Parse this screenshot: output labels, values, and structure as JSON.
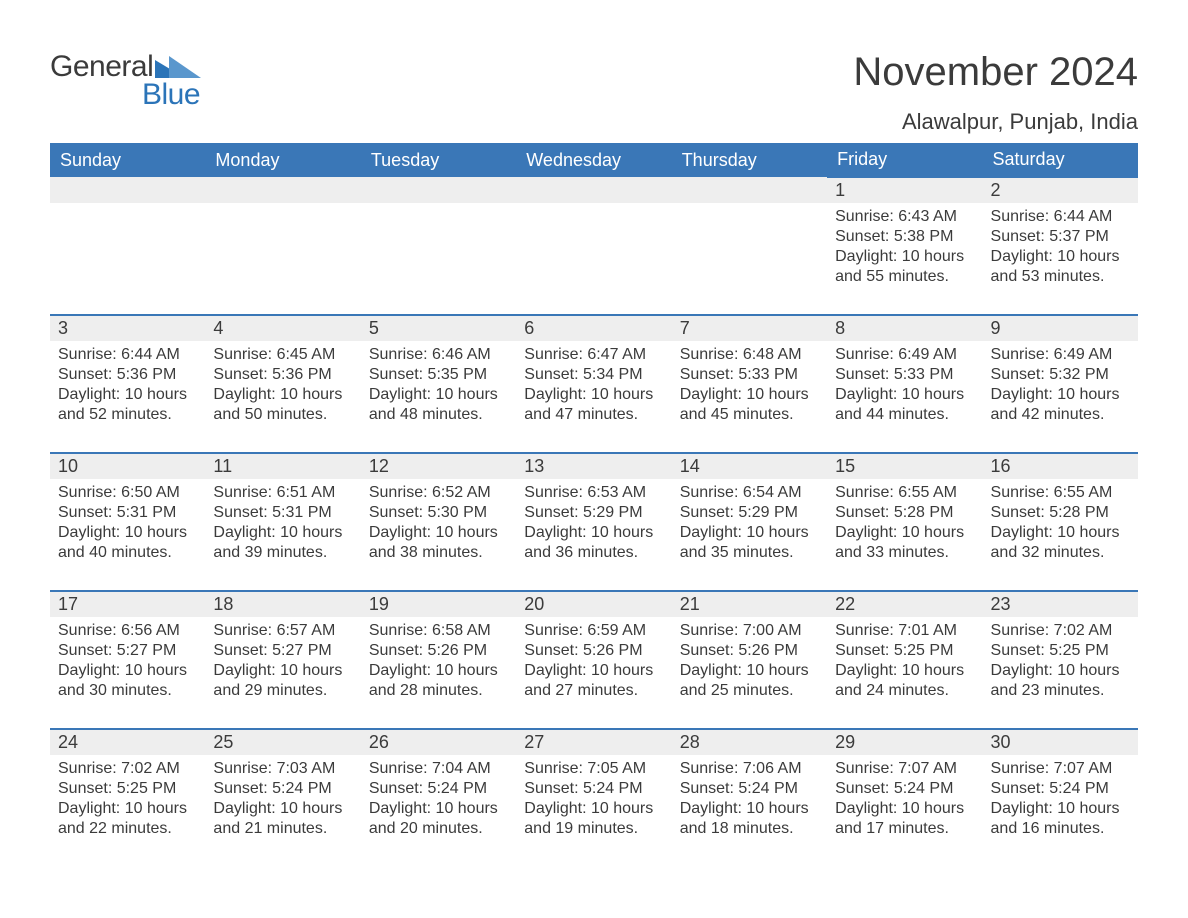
{
  "brand": {
    "word1": "General",
    "word2": "Blue",
    "accent_color": "#2b74b8"
  },
  "title": "November 2024",
  "location": "Alawalpur, Punjab, India",
  "colors": {
    "header_bg": "#3a77b7",
    "header_text": "#ffffff",
    "daynum_bg": "#eeeeee",
    "text": "#3b3b3b",
    "rule": "#3a77b7",
    "page_bg": "#ffffff"
  },
  "typography": {
    "title_fontsize": 40,
    "location_fontsize": 22,
    "header_fontsize": 18,
    "body_fontsize": 16
  },
  "columns": [
    "Sunday",
    "Monday",
    "Tuesday",
    "Wednesday",
    "Thursday",
    "Friday",
    "Saturday"
  ],
  "weeks": [
    [
      null,
      null,
      null,
      null,
      null,
      {
        "n": "1",
        "sunrise": "6:43 AM",
        "sunset": "5:38 PM",
        "daylight": "10 hours and 55 minutes."
      },
      {
        "n": "2",
        "sunrise": "6:44 AM",
        "sunset": "5:37 PM",
        "daylight": "10 hours and 53 minutes."
      }
    ],
    [
      {
        "n": "3",
        "sunrise": "6:44 AM",
        "sunset": "5:36 PM",
        "daylight": "10 hours and 52 minutes."
      },
      {
        "n": "4",
        "sunrise": "6:45 AM",
        "sunset": "5:36 PM",
        "daylight": "10 hours and 50 minutes."
      },
      {
        "n": "5",
        "sunrise": "6:46 AM",
        "sunset": "5:35 PM",
        "daylight": "10 hours and 48 minutes."
      },
      {
        "n": "6",
        "sunrise": "6:47 AM",
        "sunset": "5:34 PM",
        "daylight": "10 hours and 47 minutes."
      },
      {
        "n": "7",
        "sunrise": "6:48 AM",
        "sunset": "5:33 PM",
        "daylight": "10 hours and 45 minutes."
      },
      {
        "n": "8",
        "sunrise": "6:49 AM",
        "sunset": "5:33 PM",
        "daylight": "10 hours and 44 minutes."
      },
      {
        "n": "9",
        "sunrise": "6:49 AM",
        "sunset": "5:32 PM",
        "daylight": "10 hours and 42 minutes."
      }
    ],
    [
      {
        "n": "10",
        "sunrise": "6:50 AM",
        "sunset": "5:31 PM",
        "daylight": "10 hours and 40 minutes."
      },
      {
        "n": "11",
        "sunrise": "6:51 AM",
        "sunset": "5:31 PM",
        "daylight": "10 hours and 39 minutes."
      },
      {
        "n": "12",
        "sunrise": "6:52 AM",
        "sunset": "5:30 PM",
        "daylight": "10 hours and 38 minutes."
      },
      {
        "n": "13",
        "sunrise": "6:53 AM",
        "sunset": "5:29 PM",
        "daylight": "10 hours and 36 minutes."
      },
      {
        "n": "14",
        "sunrise": "6:54 AM",
        "sunset": "5:29 PM",
        "daylight": "10 hours and 35 minutes."
      },
      {
        "n": "15",
        "sunrise": "6:55 AM",
        "sunset": "5:28 PM",
        "daylight": "10 hours and 33 minutes."
      },
      {
        "n": "16",
        "sunrise": "6:55 AM",
        "sunset": "5:28 PM",
        "daylight": "10 hours and 32 minutes."
      }
    ],
    [
      {
        "n": "17",
        "sunrise": "6:56 AM",
        "sunset": "5:27 PM",
        "daylight": "10 hours and 30 minutes."
      },
      {
        "n": "18",
        "sunrise": "6:57 AM",
        "sunset": "5:27 PM",
        "daylight": "10 hours and 29 minutes."
      },
      {
        "n": "19",
        "sunrise": "6:58 AM",
        "sunset": "5:26 PM",
        "daylight": "10 hours and 28 minutes."
      },
      {
        "n": "20",
        "sunrise": "6:59 AM",
        "sunset": "5:26 PM",
        "daylight": "10 hours and 27 minutes."
      },
      {
        "n": "21",
        "sunrise": "7:00 AM",
        "sunset": "5:26 PM",
        "daylight": "10 hours and 25 minutes."
      },
      {
        "n": "22",
        "sunrise": "7:01 AM",
        "sunset": "5:25 PM",
        "daylight": "10 hours and 24 minutes."
      },
      {
        "n": "23",
        "sunrise": "7:02 AM",
        "sunset": "5:25 PM",
        "daylight": "10 hours and 23 minutes."
      }
    ],
    [
      {
        "n": "24",
        "sunrise": "7:02 AM",
        "sunset": "5:25 PM",
        "daylight": "10 hours and 22 minutes."
      },
      {
        "n": "25",
        "sunrise": "7:03 AM",
        "sunset": "5:24 PM",
        "daylight": "10 hours and 21 minutes."
      },
      {
        "n": "26",
        "sunrise": "7:04 AM",
        "sunset": "5:24 PM",
        "daylight": "10 hours and 20 minutes."
      },
      {
        "n": "27",
        "sunrise": "7:05 AM",
        "sunset": "5:24 PM",
        "daylight": "10 hours and 19 minutes."
      },
      {
        "n": "28",
        "sunrise": "7:06 AM",
        "sunset": "5:24 PM",
        "daylight": "10 hours and 18 minutes."
      },
      {
        "n": "29",
        "sunrise": "7:07 AM",
        "sunset": "5:24 PM",
        "daylight": "10 hours and 17 minutes."
      },
      {
        "n": "30",
        "sunrise": "7:07 AM",
        "sunset": "5:24 PM",
        "daylight": "10 hours and 16 minutes."
      }
    ]
  ],
  "labels": {
    "sunrise": "Sunrise: ",
    "sunset": "Sunset: ",
    "daylight": "Daylight: "
  }
}
